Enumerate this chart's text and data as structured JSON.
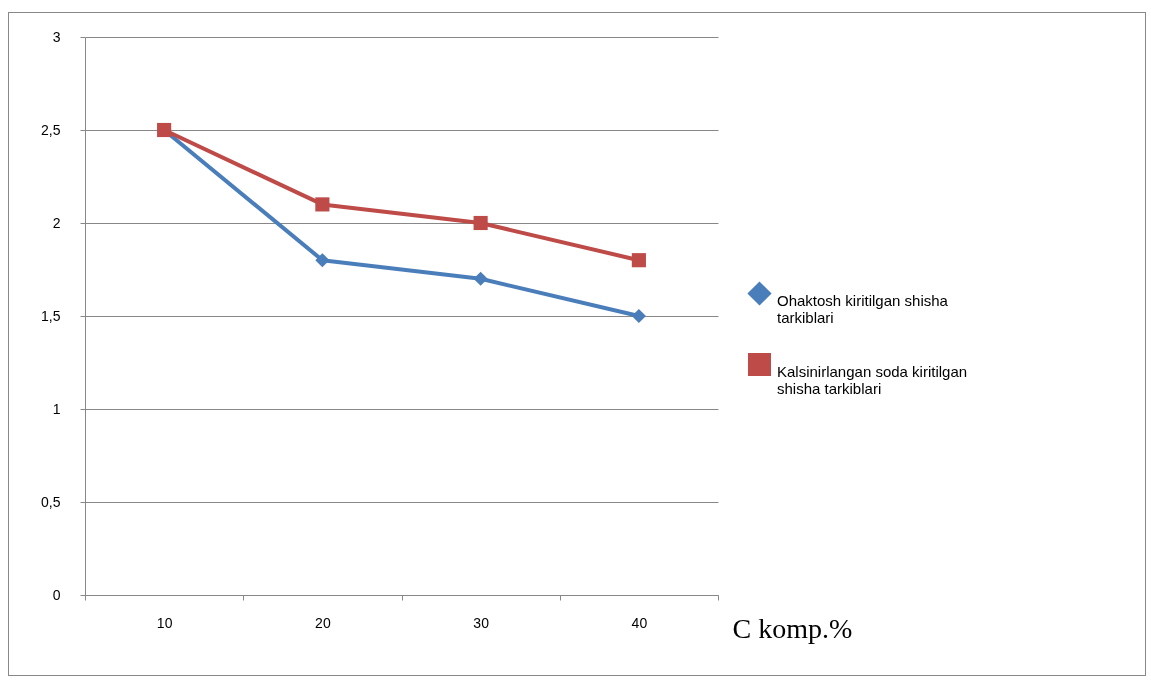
{
  "chart_data": {
    "type": "line",
    "xlabel": "C komp.%",
    "categories": [
      "10",
      "20",
      "30",
      "40"
    ],
    "series": [
      {
        "name": "Ohaktosh kiritilgan shisha tarkiblari",
        "color": "#4a7ebb",
        "marker": "diamond",
        "values": [
          2.5,
          1.8,
          1.7,
          1.5
        ]
      },
      {
        "name": "Kalsinirlangan soda kiritilgan shisha tarkiblari",
        "color": "#be4b48",
        "marker": "square",
        "values": [
          2.5,
          2.1,
          2.0,
          1.8
        ]
      }
    ],
    "ylim": [
      0,
      3
    ],
    "yticks": [
      0,
      {
        "value": 0.5,
        "label": "0,5"
      },
      1,
      {
        "value": 1.5,
        "label": "1,5"
      },
      2,
      {
        "value": 2.5,
        "label": "2,5"
      },
      3
    ],
    "grid": "y",
    "legend": "right",
    "line_style": "solid"
  }
}
